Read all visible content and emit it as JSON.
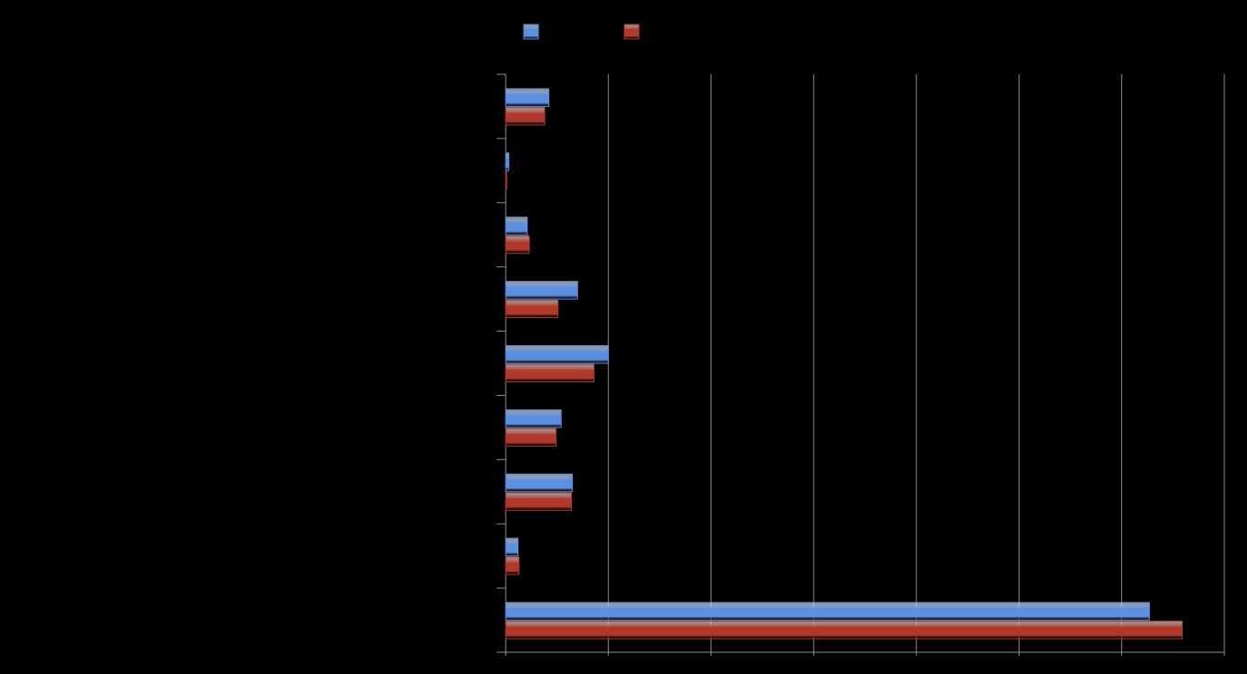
{
  "chart_data": {
    "type": "bar",
    "orientation": "horizontal",
    "categories": [
      null,
      null,
      null,
      null,
      null,
      null,
      null,
      null,
      null
    ],
    "series": [
      {
        "color": "#5b8fe0",
        "values": [
          0.42,
          0.03,
          0.21,
          0.7,
          1.0,
          0.54,
          0.65,
          0.12,
          6.27
        ]
      },
      {
        "color": "#b0392c",
        "values": [
          0.38,
          0.01,
          0.23,
          0.51,
          0.86,
          0.49,
          0.64,
          0.13,
          6.59
        ]
      }
    ],
    "xlim": [
      0,
      7
    ],
    "xticks": [
      0,
      1,
      2,
      3,
      4,
      5,
      6,
      7
    ],
    "grid": true,
    "legend": "top"
  }
}
